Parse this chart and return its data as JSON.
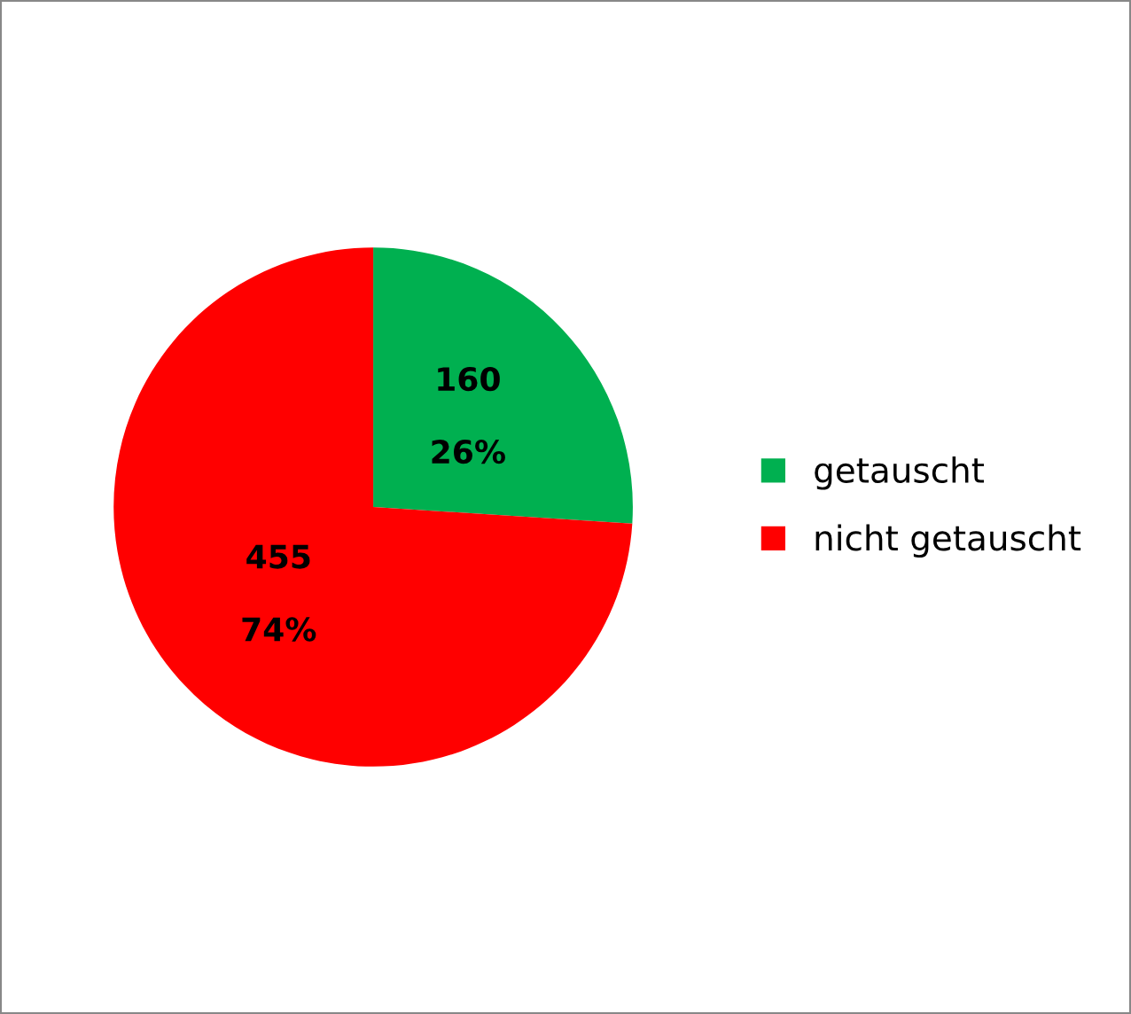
{
  "chart_data": {
    "type": "pie",
    "categories": [
      "getauscht",
      "nicht getauscht"
    ],
    "values": [
      160,
      455
    ],
    "colors": [
      "#00b050",
      "#ff0000"
    ],
    "value_labels": [
      "160",
      "455"
    ],
    "annotations": [
      "26%",
      "74%"
    ],
    "legend": "right"
  }
}
